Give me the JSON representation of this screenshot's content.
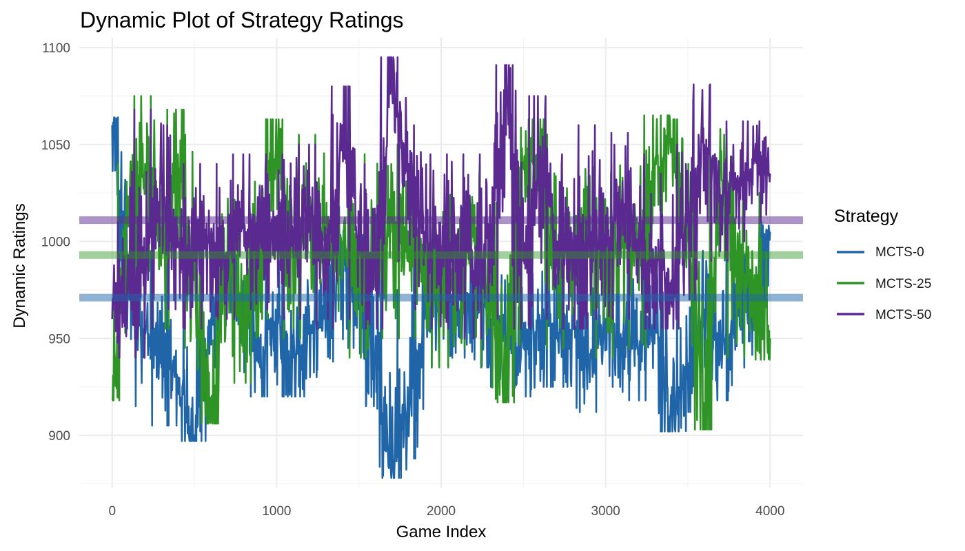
{
  "chart_data": {
    "type": "line",
    "title": "Dynamic Plot of Strategy Ratings",
    "xlabel": "Game Index",
    "ylabel": "Dynamic Ratings",
    "xlim": [
      -200,
      4200
    ],
    "ylim": [
      873,
      1105
    ],
    "x_ticks": [
      0,
      1000,
      2000,
      3000,
      4000
    ],
    "x_tick_labels": [
      "0",
      "1000",
      "2000",
      "3000",
      "4000"
    ],
    "y_ticks": [
      900,
      950,
      1000,
      1050,
      1100
    ],
    "y_tick_labels": [
      "900",
      "950",
      "1000",
      "1050",
      "1100"
    ],
    "grid": true,
    "legend": {
      "title": "Strategy",
      "position": "right"
    },
    "series": [
      {
        "name": "MCTS-0",
        "color": "#1f65a8",
        "mean": 971,
        "x": [
          0,
          100,
          200,
          300,
          400,
          500,
          600,
          700,
          800,
          900,
          1000,
          1100,
          1200,
          1300,
          1400,
          1500,
          1600,
          1700,
          1800,
          1900,
          2000,
          2100,
          2200,
          2300,
          2400,
          2500,
          2600,
          2700,
          2800,
          2900,
          3000,
          3100,
          3200,
          3300,
          3400,
          3500,
          3600,
          3700,
          3800,
          3900,
          4000
        ],
        "values": [
          1060,
          975,
          955,
          935,
          930,
          900,
          960,
          985,
          970,
          935,
          960,
          940,
          955,
          960,
          990,
          965,
          940,
          882,
          910,
          960,
          985,
          965,
          970,
          960,
          950,
          945,
          960,
          950,
          955,
          935,
          960,
          950,
          945,
          960,
          910,
          935,
          965,
          945,
          960,
          965,
          1005
        ],
        "min": [
          1040,
          955,
          915,
          905,
          905,
          897,
          935,
          965,
          945,
          920,
          938,
          920,
          930,
          938,
          965,
          945,
          915,
          878,
          888,
          935,
          960,
          940,
          945,
          935,
          925,
          920,
          935,
          925,
          930,
          912,
          935,
          925,
          918,
          935,
          902,
          912,
          940,
          918,
          935,
          940,
          975
        ],
        "max": [
          1064,
          1005,
          995,
          985,
          990,
          975,
          995,
          1010,
          1000,
          980,
          995,
          990,
          995,
          1000,
          1020,
          1030,
          995,
          955,
          975,
          1000,
          1015,
          1010,
          1005,
          1000,
          995,
          1000,
          1000,
          995,
          1000,
          985,
          1000,
          995,
          990,
          1000,
          960,
          985,
          1005,
          990,
          1000,
          1005,
          1010
        ]
      },
      {
        "name": "MCTS-25",
        "color": "#2e9426",
        "mean": 993,
        "x": [
          0,
          100,
          200,
          300,
          400,
          500,
          600,
          700,
          800,
          900,
          1000,
          1100,
          1200,
          1300,
          1400,
          1500,
          1600,
          1700,
          1800,
          1900,
          2000,
          2100,
          2200,
          2300,
          2400,
          2500,
          2600,
          2700,
          2800,
          2900,
          3000,
          3100,
          3200,
          3300,
          3400,
          3500,
          3600,
          3700,
          3800,
          3900,
          4000
        ],
        "values": [
          918,
          1010,
          1040,
          995,
          1045,
          980,
          915,
          985,
          960,
          1000,
          1050,
          990,
          1020,
          995,
          1000,
          975,
          990,
          1010,
          990,
          1000,
          970,
          985,
          1000,
          975,
          925,
          1040,
          1045,
          990,
          995,
          1000,
          985,
          1000,
          990,
          1040,
          1050,
          1000,
          910,
          1035,
          985,
          980,
          950
        ],
        "min": [
          918,
          975,
          985,
          955,
          990,
          945,
          906,
          945,
          927,
          960,
          1000,
          950,
          980,
          955,
          960,
          940,
          950,
          965,
          950,
          955,
          935,
          945,
          960,
          935,
          917,
          995,
          995,
          945,
          955,
          955,
          940,
          955,
          945,
          990,
          1000,
          955,
          903,
          985,
          940,
          940,
          939
        ],
        "max": [
          960,
          1040,
          1075,
          1045,
          1068,
          1025,
          985,
          1030,
          1010,
          1040,
          1063,
          1035,
          1055,
          1048,
          1040,
          1020,
          1045,
          1050,
          1030,
          1040,
          1015,
          1030,
          1040,
          1020,
          1000,
          1063,
          1063,
          1030,
          1035,
          1040,
          1025,
          1040,
          1030,
          1065,
          1063,
          1040,
          980,
          1058,
          1030,
          1025,
          1000
        ]
      },
      {
        "name": "MCTS-50",
        "color": "#5b2a91",
        "mean": 1011,
        "x": [
          0,
          100,
          200,
          300,
          400,
          500,
          600,
          700,
          800,
          900,
          1000,
          1100,
          1200,
          1300,
          1400,
          1500,
          1600,
          1700,
          1800,
          1900,
          2000,
          2100,
          2200,
          2300,
          2400,
          2500,
          2600,
          2700,
          2800,
          2900,
          3000,
          3100,
          3200,
          3300,
          3400,
          3500,
          3600,
          3700,
          3800,
          3900,
          4000
        ],
        "values": [
          960,
          975,
          985,
          1030,
          1000,
          990,
          1000,
          990,
          1010,
          1000,
          1010,
          1000,
          1015,
          990,
          1060,
          1000,
          990,
          1085,
          1030,
          1005,
          990,
          1000,
          985,
          1000,
          1075,
          990,
          1040,
          1000,
          990,
          1000,
          1000,
          1020,
          1000,
          990,
          980,
          1010,
          1050,
          1020,
          1030,
          1040,
          1035
        ],
        "min": [
          950,
          940,
          955,
          985,
          965,
          955,
          965,
          960,
          975,
          965,
          975,
          960,
          975,
          955,
          1000,
          960,
          955,
          1050,
          990,
          965,
          955,
          960,
          950,
          960,
          1040,
          955,
          1000,
          960,
          955,
          960,
          960,
          980,
          960,
          955,
          955,
          970,
          1010,
          990,
          1000,
          1010,
          1010
        ],
        "max": [
          1000,
          1010,
          1068,
          1060,
          1040,
          1030,
          1040,
          1030,
          1045,
          1040,
          1045,
          1035,
          1050,
          1040,
          1080,
          1040,
          1035,
          1095,
          1060,
          1045,
          1030,
          1045,
          1030,
          1045,
          1091,
          1035,
          1075,
          1045,
          1035,
          1060,
          1045,
          1056,
          1045,
          1035,
          1030,
          1050,
          1081,
          1060,
          1062,
          1062,
          1058
        ]
      }
    ]
  }
}
